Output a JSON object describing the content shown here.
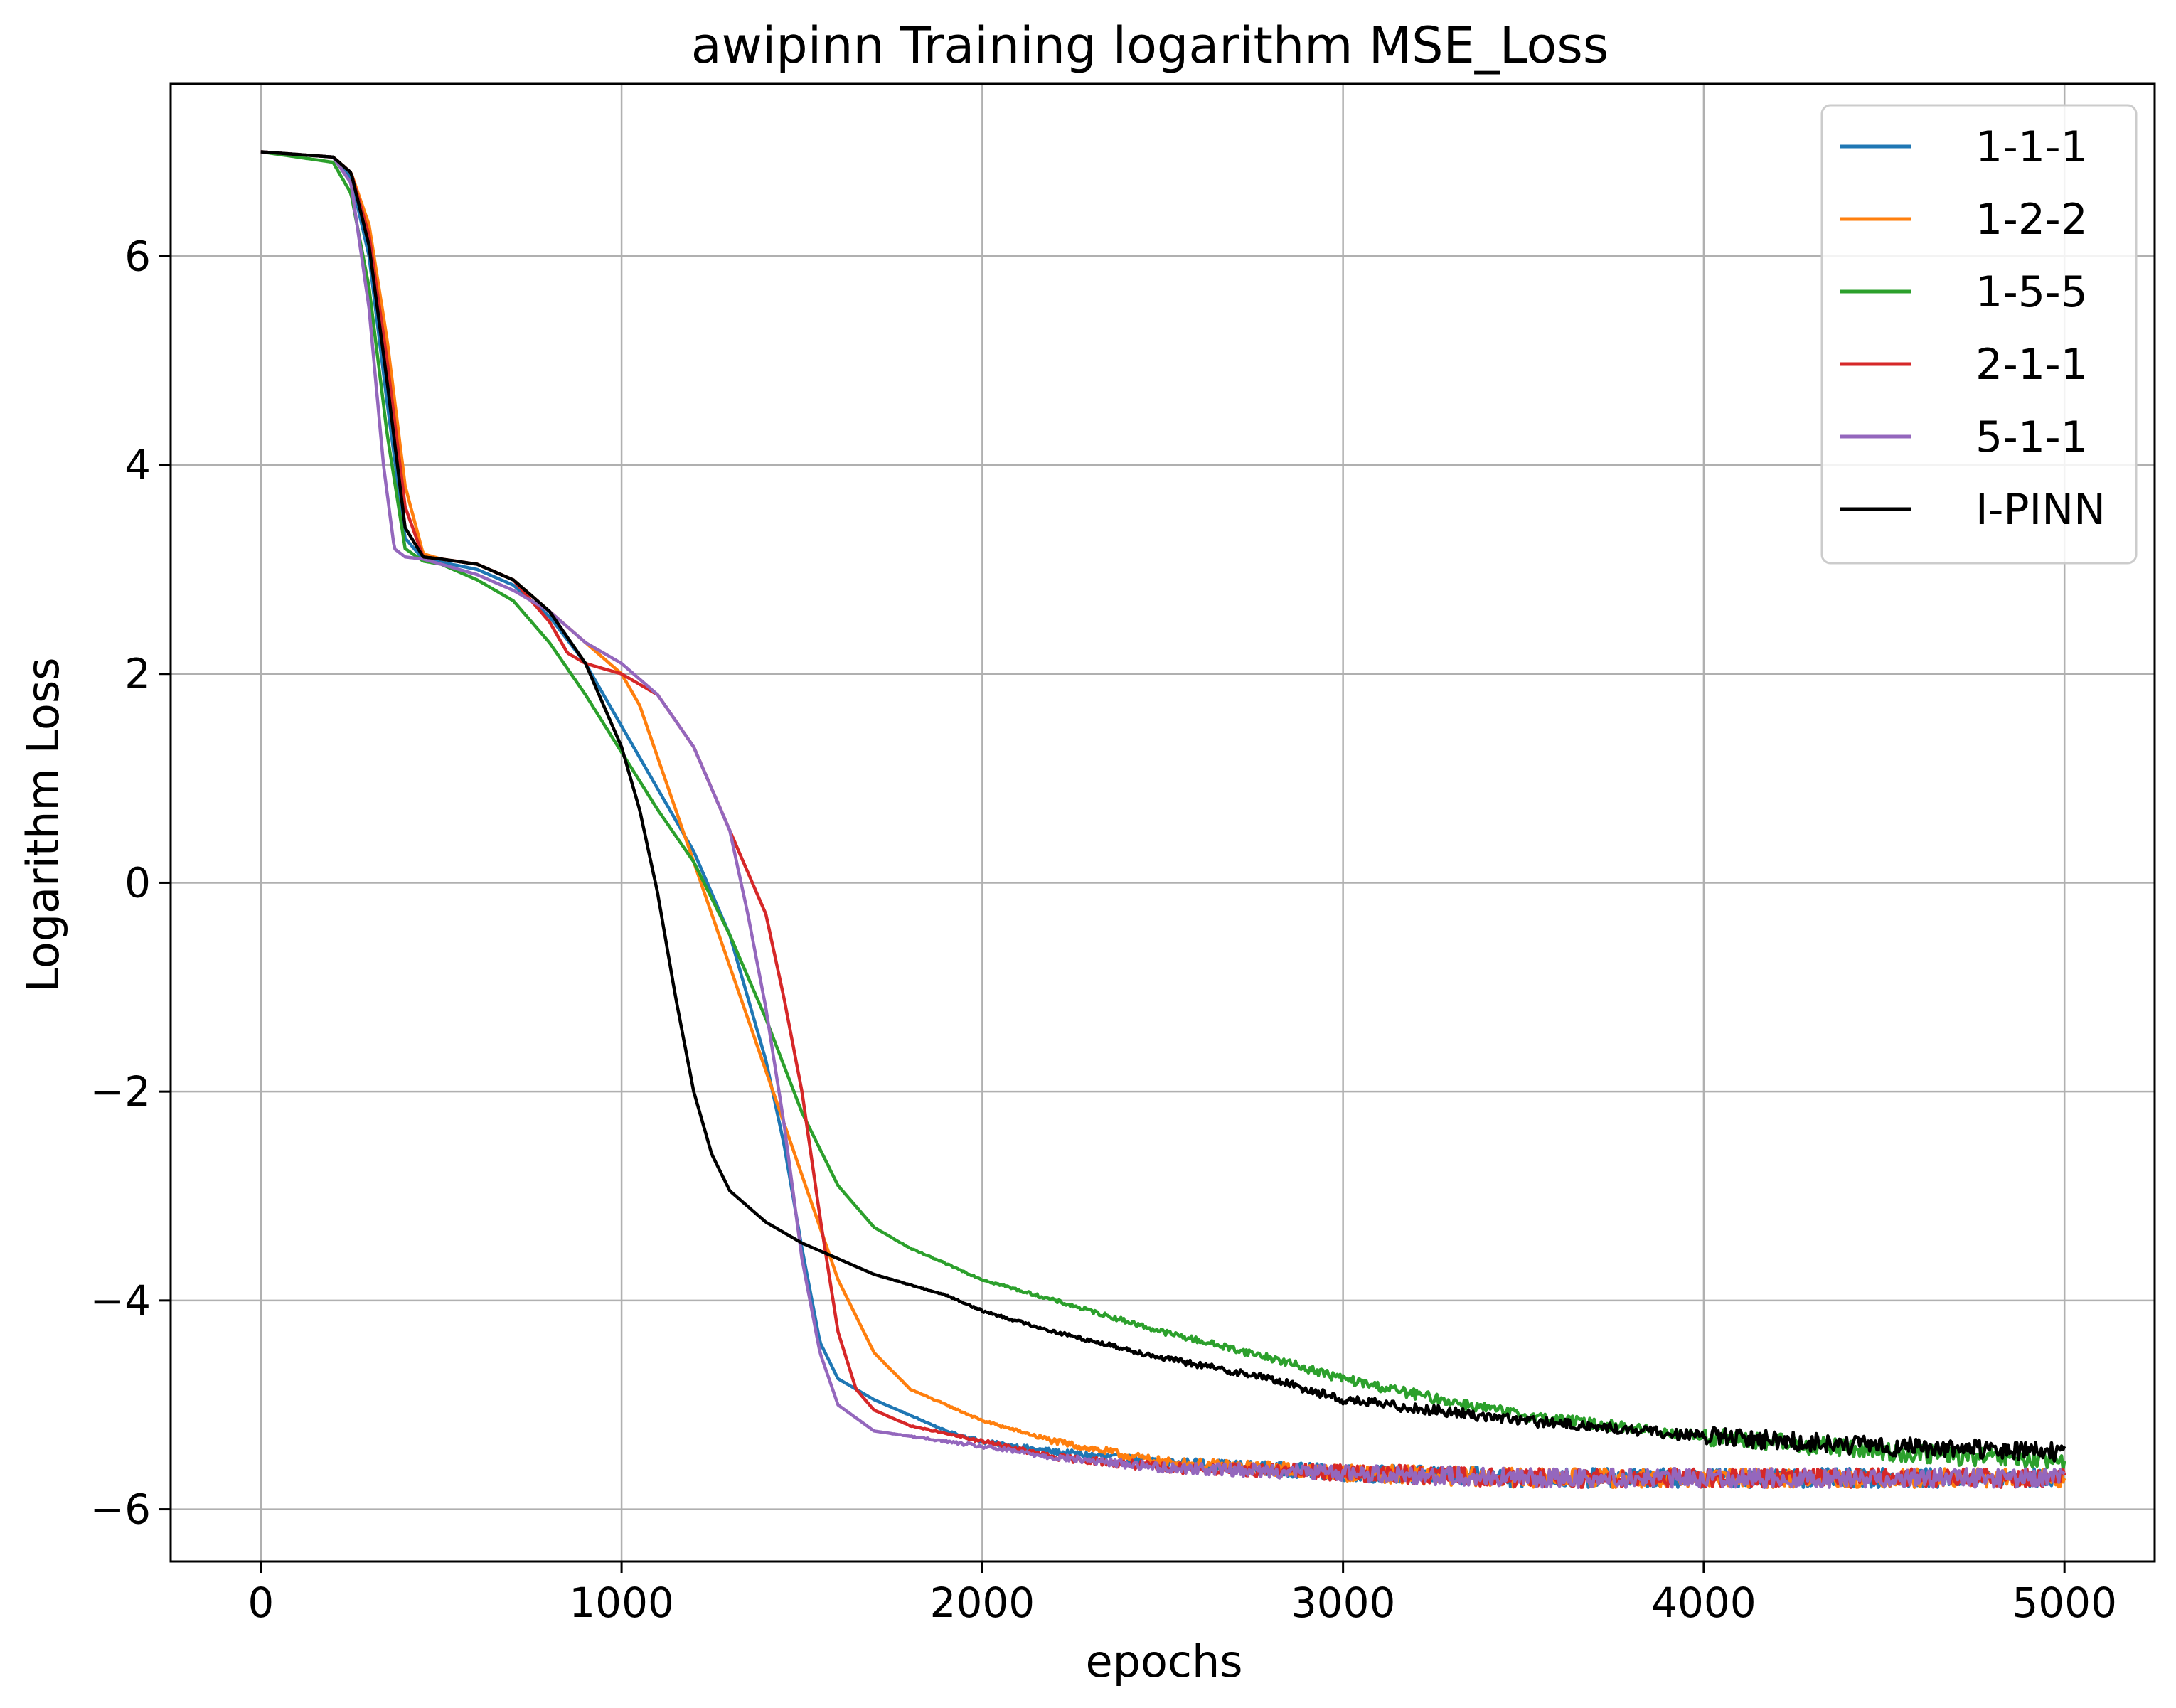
{
  "chart_data": {
    "type": "line",
    "title": "awipinn Training logarithm MSE_Loss",
    "xlabel": "epochs",
    "ylabel": "Logarithm Loss",
    "xlim": [
      -250,
      5250
    ],
    "ylim": [
      -6.5,
      7.65
    ],
    "xticks": [
      0,
      1000,
      2000,
      3000,
      4000,
      5000
    ],
    "xtick_labels": [
      "0",
      "1000",
      "2000",
      "3000",
      "4000",
      "5000"
    ],
    "yticks": [
      -6,
      -4,
      -2,
      0,
      2,
      4,
      6
    ],
    "ytick_labels": [
      "−6",
      "−4",
      "−2",
      "0",
      "2",
      "4",
      "6"
    ],
    "grid": true,
    "legend_position": "top-right",
    "series": [
      {
        "name": "1-1-1",
        "color": "#1f77b4",
        "x": [
          0,
          200,
          250,
          300,
          350,
          400,
          450,
          500,
          600,
          700,
          800,
          900,
          1000,
          1100,
          1200,
          1300,
          1400,
          1450,
          1500,
          1550,
          1600,
          1700,
          1800,
          1900,
          2000,
          2200,
          2500,
          3000,
          3500,
          4000,
          4500,
          5000
        ],
        "y": [
          7.0,
          6.95,
          6.75,
          6.0,
          4.6,
          3.3,
          3.1,
          3.07,
          3.0,
          2.85,
          2.55,
          2.1,
          1.5,
          0.9,
          0.3,
          -0.5,
          -1.7,
          -2.5,
          -3.5,
          -4.4,
          -4.75,
          -4.95,
          -5.1,
          -5.25,
          -5.35,
          -5.45,
          -5.55,
          -5.65,
          -5.7,
          -5.7,
          -5.7,
          -5.7
        ]
      },
      {
        "name": "1-2-2",
        "color": "#ff7f0e",
        "x": [
          0,
          200,
          250,
          300,
          350,
          400,
          450,
          500,
          600,
          700,
          800,
          900,
          1000,
          1050,
          1100,
          1200,
          1300,
          1400,
          1500,
          1600,
          1700,
          1800,
          1900,
          2000,
          2200,
          2500,
          3000,
          3500,
          4000,
          4500,
          5000
        ],
        "y": [
          7.0,
          6.95,
          6.8,
          6.3,
          5.2,
          3.8,
          3.15,
          3.1,
          3.05,
          2.9,
          2.6,
          2.3,
          2.0,
          1.7,
          1.2,
          0.2,
          -0.8,
          -1.8,
          -2.8,
          -3.8,
          -4.5,
          -4.85,
          -5.0,
          -5.15,
          -5.35,
          -5.55,
          -5.65,
          -5.7,
          -5.7,
          -5.7,
          -5.7
        ]
      },
      {
        "name": "1-5-5",
        "color": "#2ca02c",
        "x": [
          0,
          200,
          250,
          300,
          350,
          400,
          450,
          500,
          600,
          700,
          800,
          900,
          1000,
          1100,
          1200,
          1300,
          1400,
          1500,
          1600,
          1700,
          1800,
          2000,
          2200,
          2500,
          2800,
          3000,
          3200,
          3500,
          4000,
          4500,
          5000
        ],
        "y": [
          7.0,
          6.9,
          6.6,
          5.7,
          4.3,
          3.2,
          3.08,
          3.05,
          2.9,
          2.7,
          2.3,
          1.8,
          1.25,
          0.7,
          0.2,
          -0.5,
          -1.3,
          -2.2,
          -2.9,
          -3.3,
          -3.5,
          -3.8,
          -4.0,
          -4.3,
          -4.55,
          -4.75,
          -4.9,
          -5.1,
          -5.3,
          -5.45,
          -5.55
        ]
      },
      {
        "name": "2-1-1",
        "color": "#d62728",
        "x": [
          0,
          200,
          250,
          300,
          350,
          400,
          450,
          500,
          600,
          700,
          800,
          850,
          900,
          1000,
          1100,
          1200,
          1300,
          1400,
          1450,
          1500,
          1550,
          1600,
          1650,
          1700,
          1800,
          2000,
          2200,
          2500,
          3000,
          3500,
          4000,
          4500,
          5000
        ],
        "y": [
          7.0,
          6.95,
          6.8,
          6.2,
          5.0,
          3.6,
          3.12,
          3.1,
          3.05,
          2.9,
          2.5,
          2.2,
          2.1,
          2.0,
          1.8,
          1.3,
          0.5,
          -0.3,
          -1.1,
          -2.0,
          -3.2,
          -4.3,
          -4.85,
          -5.05,
          -5.2,
          -5.35,
          -5.5,
          -5.6,
          -5.65,
          -5.7,
          -5.7,
          -5.7,
          -5.7
        ]
      },
      {
        "name": "5-1-1",
        "color": "#9467bd",
        "x": [
          0,
          200,
          250,
          300,
          340,
          370,
          400,
          450,
          500,
          600,
          700,
          800,
          900,
          1000,
          1100,
          1200,
          1300,
          1350,
          1400,
          1450,
          1500,
          1550,
          1600,
          1700,
          1800,
          1900,
          2000,
          2200,
          2500,
          3000,
          3500,
          4000,
          4500,
          5000
        ],
        "y": [
          7.0,
          6.95,
          6.7,
          5.5,
          4.0,
          3.2,
          3.12,
          3.1,
          3.05,
          2.95,
          2.8,
          2.6,
          2.3,
          2.1,
          1.8,
          1.3,
          0.5,
          -0.3,
          -1.2,
          -2.3,
          -3.6,
          -4.5,
          -5.0,
          -5.25,
          -5.3,
          -5.35,
          -5.4,
          -5.5,
          -5.6,
          -5.65,
          -5.7,
          -5.7,
          -5.7,
          -5.7
        ]
      },
      {
        "name": "I-PINN",
        "color": "#000000",
        "x": [
          0,
          200,
          250,
          300,
          350,
          400,
          450,
          500,
          600,
          700,
          800,
          900,
          1000,
          1050,
          1100,
          1150,
          1200,
          1250,
          1300,
          1400,
          1500,
          1600,
          1700,
          1800,
          1900,
          2000,
          2200,
          2500,
          2800,
          3000,
          3500,
          4000,
          4500,
          5000
        ],
        "y": [
          7.0,
          6.95,
          6.8,
          6.1,
          4.8,
          3.4,
          3.12,
          3.1,
          3.05,
          2.9,
          2.6,
          2.1,
          1.3,
          0.7,
          -0.1,
          -1.1,
          -2.0,
          -2.6,
          -2.95,
          -3.25,
          -3.45,
          -3.6,
          -3.75,
          -3.85,
          -3.95,
          -4.1,
          -4.3,
          -4.55,
          -4.75,
          -4.95,
          -5.15,
          -5.3,
          -5.4,
          -5.45
        ]
      }
    ]
  }
}
